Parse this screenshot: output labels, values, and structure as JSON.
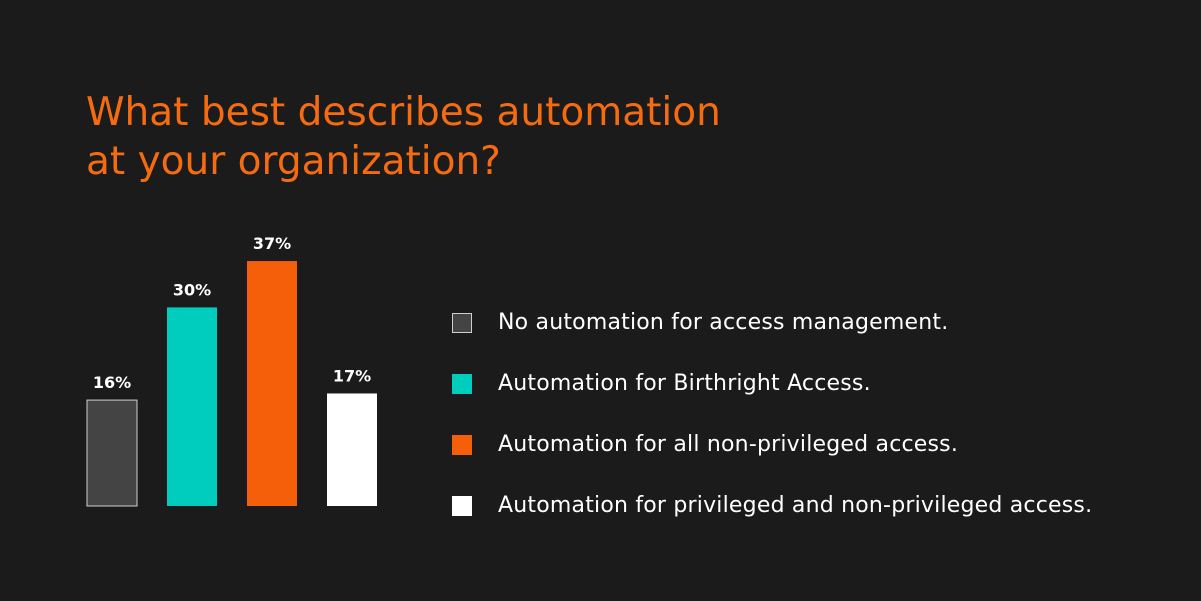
{
  "title_lines": [
    "What best describes automation",
    "at your organization?"
  ],
  "colors": {
    "background": "#1b1b1b",
    "title": "#f56b11"
  },
  "chart_data": {
    "type": "bar",
    "title": "What best describes automation at your organization?",
    "categories": [
      "No automation for access management.",
      "Automation for Birthright Access.",
      "Automation for all non-privileged access.",
      "Automation for privileged and non-privileged access."
    ],
    "values": [
      16,
      30,
      37,
      17
    ],
    "data_labels": [
      "16%",
      "30%",
      "37%",
      "17%"
    ],
    "colors": [
      "#444444",
      "#00cdbd",
      "#f55f0a",
      "#ffffff"
    ],
    "unit": "%",
    "legend_position": "right",
    "grid": false
  }
}
